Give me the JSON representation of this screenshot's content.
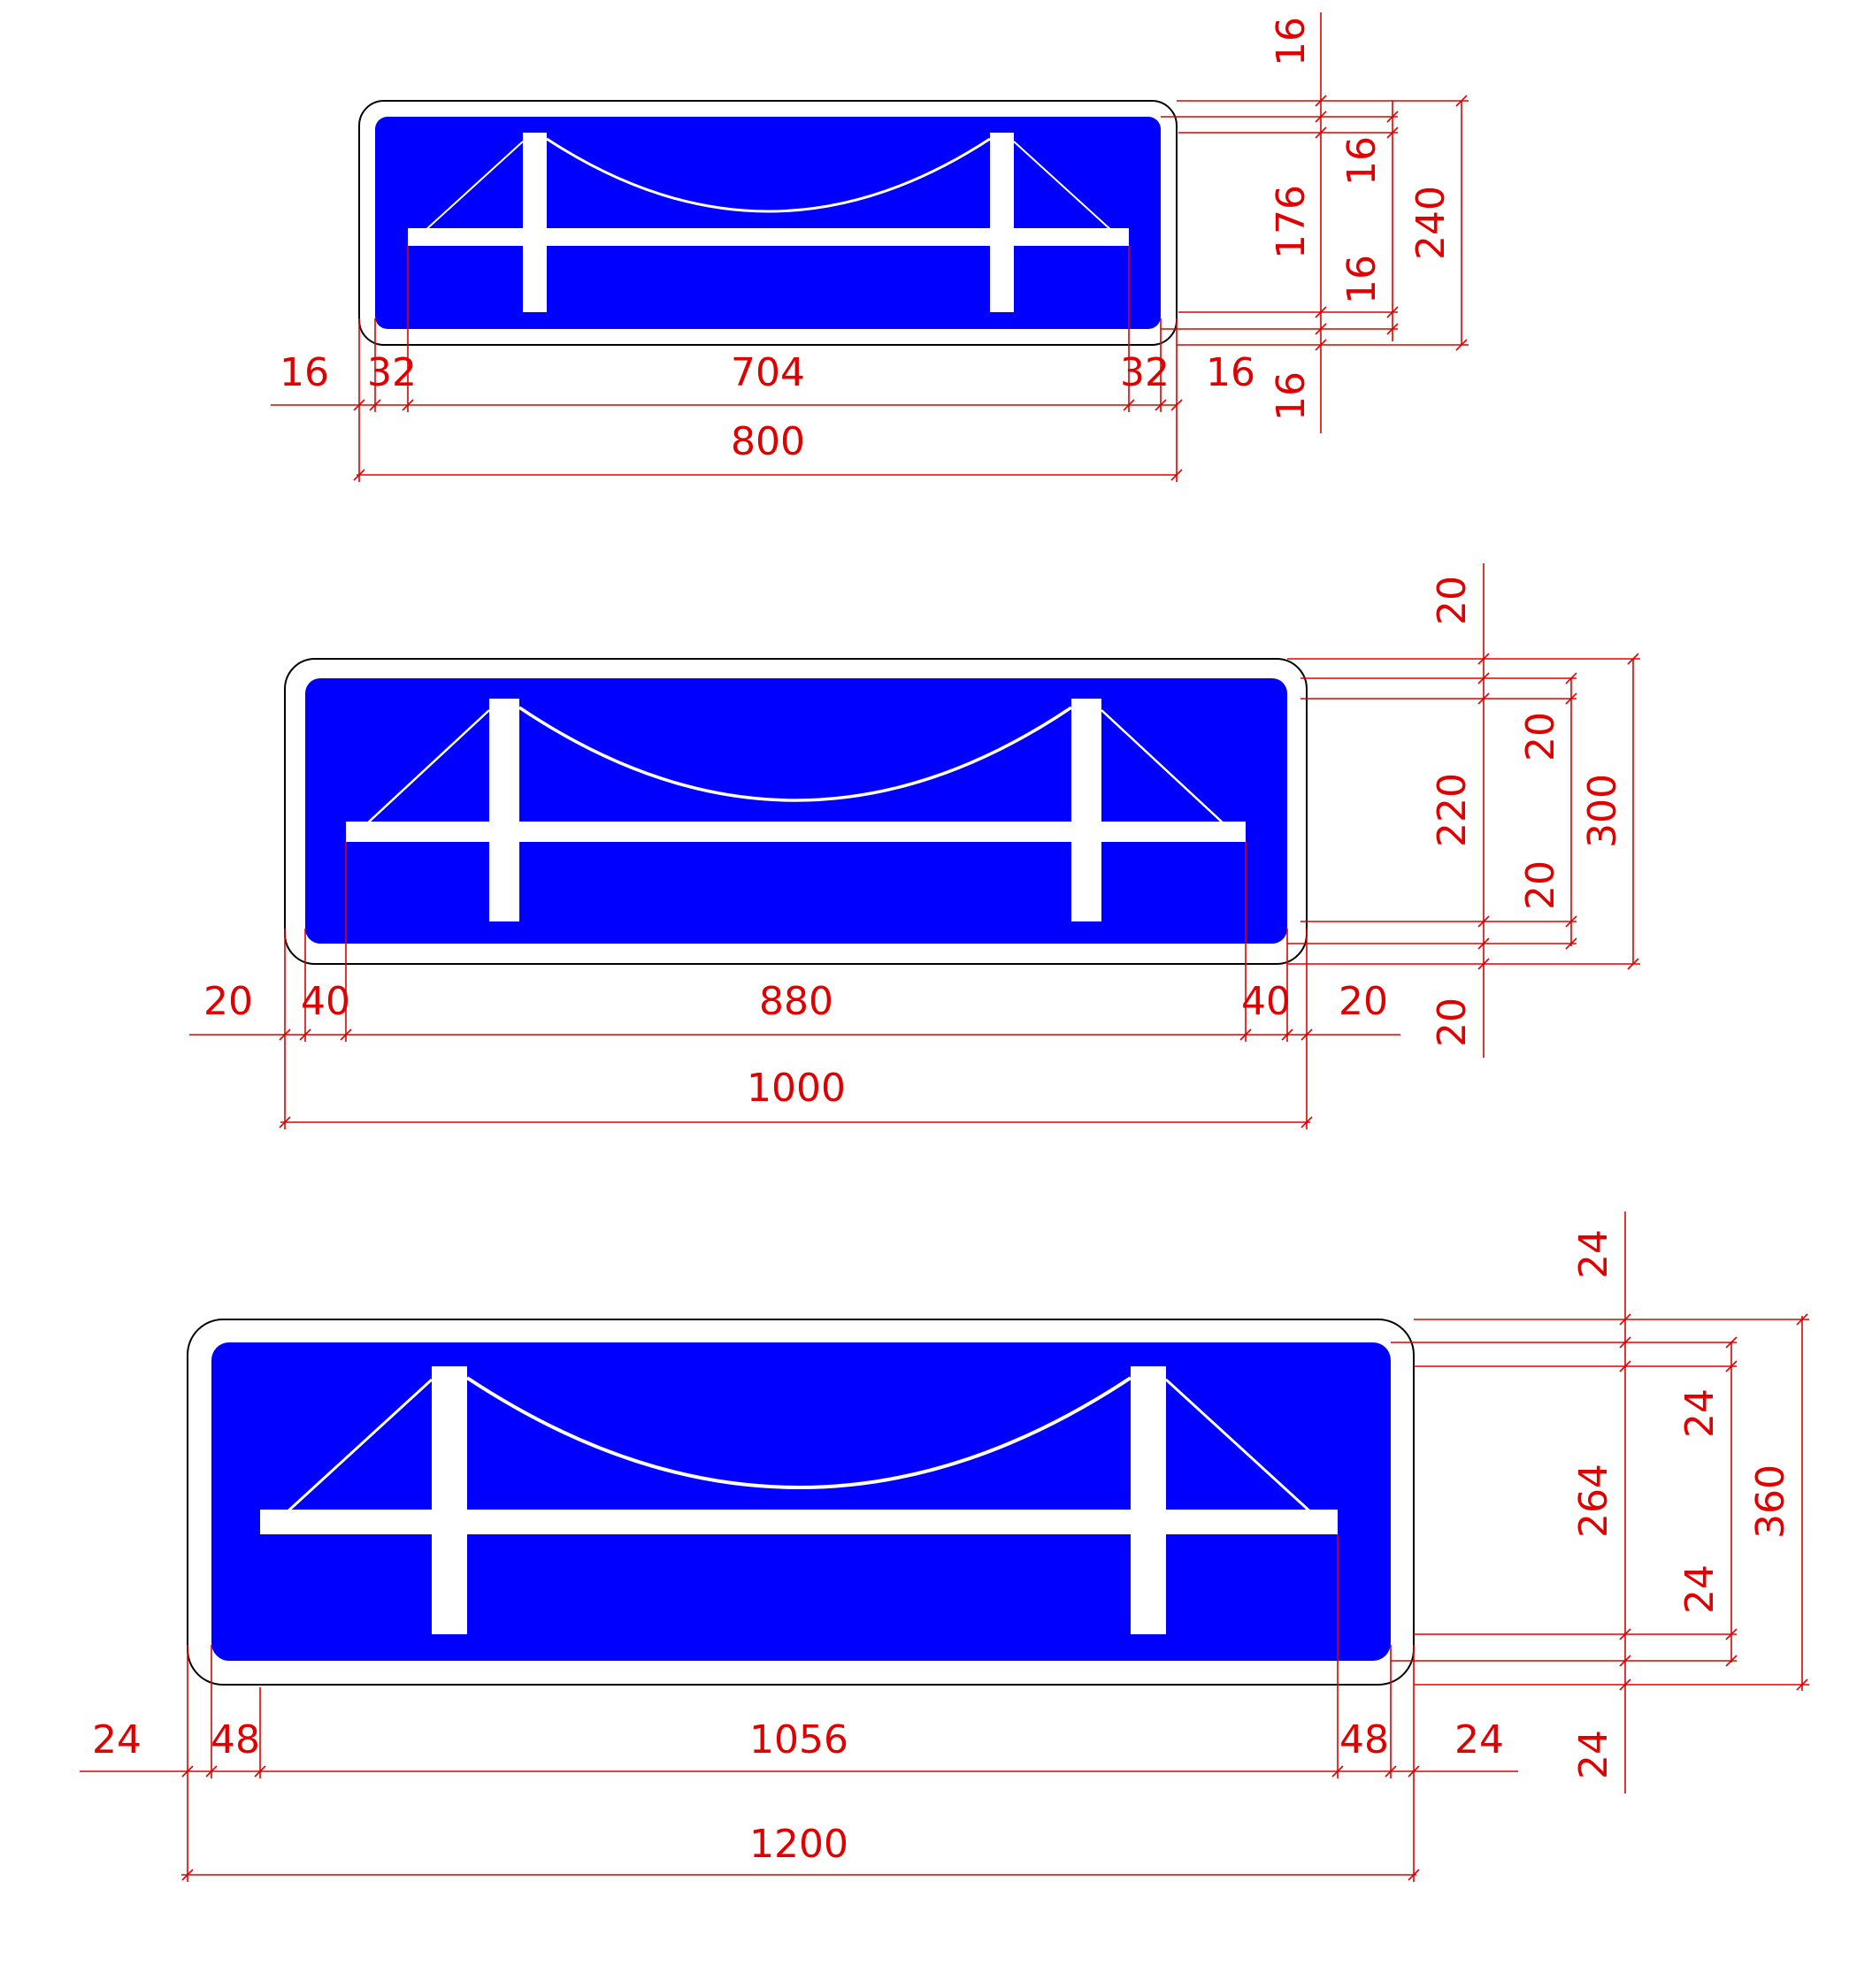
{
  "colors": {
    "sign_background": "#0000ff",
    "symbol": "#ffffff",
    "outline": "#000000",
    "dimension": "#e00000"
  },
  "signs": [
    {
      "icon": "suspension-bridge-icon",
      "dims": {
        "border_left": "16",
        "margin_left": "32",
        "inner_width": "704",
        "margin_right": "32",
        "border_right": "16",
        "total_width": "800",
        "border_top": "16",
        "margin_top": "16",
        "inner_height": "176",
        "margin_bottom": "16",
        "border_bottom": "16",
        "total_height": "240"
      }
    },
    {
      "icon": "suspension-bridge-icon",
      "dims": {
        "border_left": "20",
        "margin_left": "40",
        "inner_width": "880",
        "margin_right": "40",
        "border_right": "20",
        "total_width": "1000",
        "border_top": "20",
        "margin_top": "20",
        "inner_height": "220",
        "margin_bottom": "20",
        "border_bottom": "20",
        "total_height": "300"
      }
    },
    {
      "icon": "suspension-bridge-icon",
      "dims": {
        "border_left": "24",
        "margin_left": "48",
        "inner_width": "1056",
        "margin_right": "48",
        "border_right": "24",
        "total_width": "1200",
        "border_top": "24",
        "margin_top": "24",
        "inner_height": "264",
        "margin_bottom": "24",
        "border_bottom": "24",
        "total_height": "360"
      }
    }
  ]
}
